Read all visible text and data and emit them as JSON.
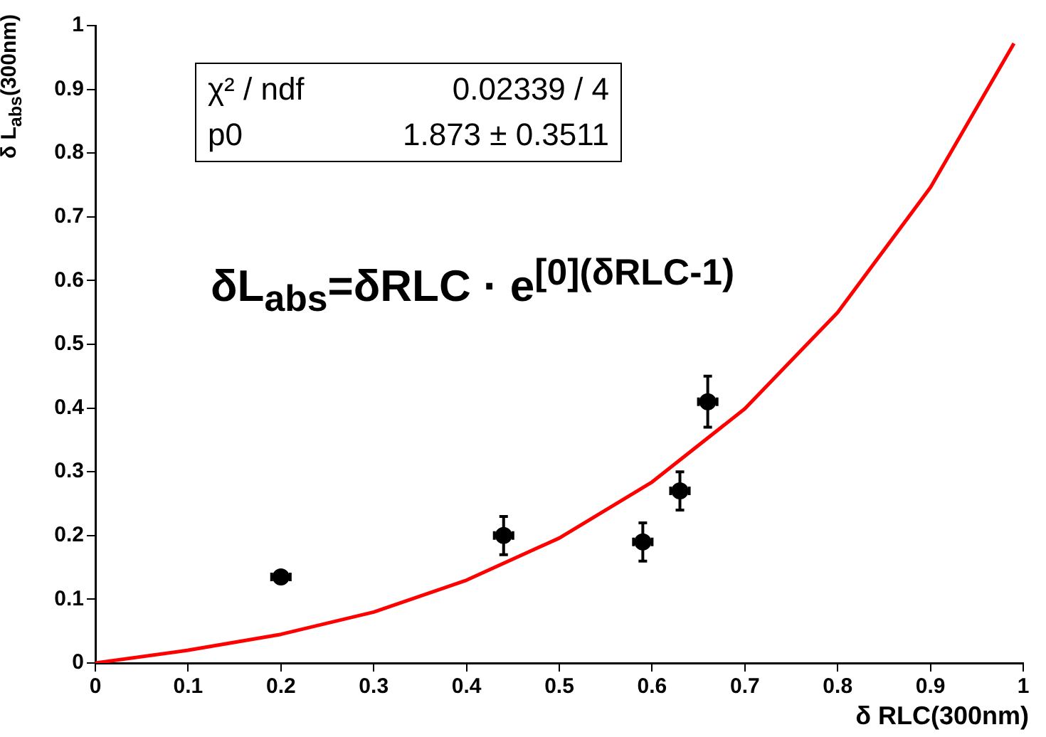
{
  "chart_data": {
    "type": "scatter",
    "xlabel": "δ RLC(300nm)",
    "ylabel": "δ L$_{abs}$(300nm)",
    "annotations": [
      "χ² / ndf",
      "0.02339 / 4",
      "p0",
      "1.873 ± 0.3511",
      "δL$_{abs}$=δRLC · e$^{[0](δRLC-1)}$"
    ],
    "xlim": [
      0,
      1
    ],
    "xticks": [
      0,
      0.1,
      0.2,
      0.3,
      0.4,
      0.5,
      0.6,
      0.7,
      0.8,
      0.9,
      1
    ],
    "ylim": [
      0,
      1
    ],
    "yticks": [
      0,
      0.1,
      0.2,
      0.3,
      0.4,
      0.5,
      0.6,
      0.7,
      0.8,
      0.9,
      1
    ],
    "grid": false,
    "legend": false,
    "series": [
      {
        "color": "#000000",
        "marker": "circle",
        "x": [
          0.2,
          0.44,
          0.59,
          0.63,
          0.66
        ],
        "values": [
          0.135,
          0.2,
          0.19,
          0.27,
          0.41
        ],
        "errors": [
          null,
          0.03,
          0.03,
          0.03,
          0.04
        ],
        "xerrors": [
          0.01,
          0.01,
          0.01,
          0.01,
          0.01
        ]
      },
      {
        "type": "line",
        "color": "#ff0000",
        "marker": "none",
        "line_style": "solid",
        "x": [
          0,
          0.1,
          0.2,
          0.3,
          0.4,
          0.5,
          0.6,
          0.7,
          0.8,
          0.9,
          0.99
        ],
        "values": [
          0,
          0.02,
          0.045,
          0.08,
          0.13,
          0.196,
          0.284,
          0.399,
          0.55,
          0.746,
          0.972
        ]
      }
    ]
  }
}
